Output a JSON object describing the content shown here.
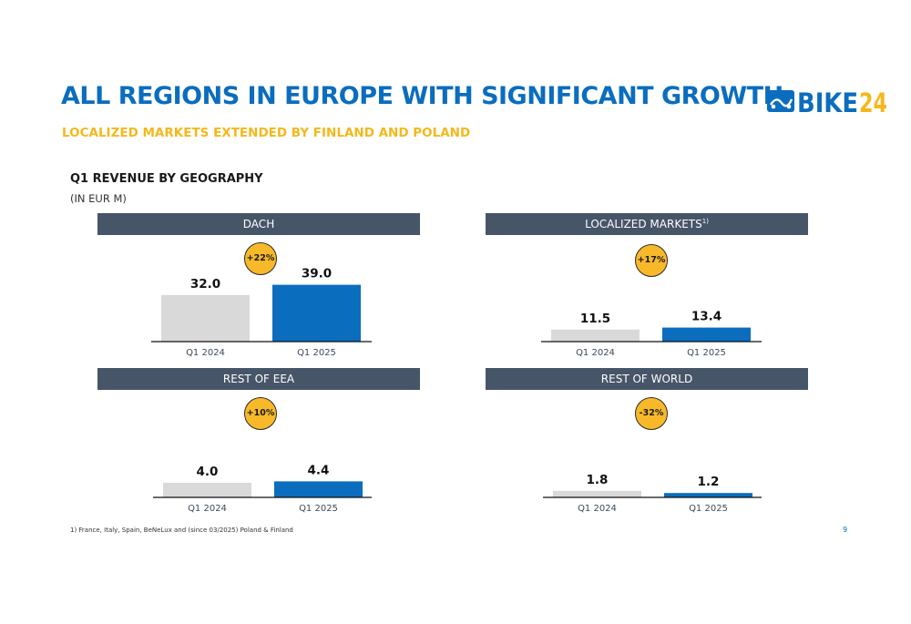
{
  "header": {
    "title": "ALL REGIONS IN EUROPE WITH SIGNIFICANT GROWTH",
    "subtitle": "LOCALIZED MARKETS EXTENDED BY FINLAND AND POLAND",
    "logo_text": "BIKE24"
  },
  "section": {
    "title": "Q1 REVENUE BY GEOGRAPHY",
    "unit": "(IN EUR M)"
  },
  "colors": {
    "title_blue": "#0b6dbe",
    "accent_yellow": "#f5b81c",
    "header_bar": "#475569",
    "bar_prior": "#d9d9d9",
    "bar_current": "#0b6dbe",
    "badge": "#f7b92a"
  },
  "chart_data": [
    {
      "type": "bar",
      "title": "DACH",
      "categories": [
        "Q1 2024",
        "Q1 2025"
      ],
      "values": [
        32.0,
        39.0
      ],
      "value_labels": [
        "32.0",
        "39.0"
      ],
      "growth": "+22%"
    },
    {
      "type": "bar",
      "title": "LOCALIZED MARKETS",
      "title_footnote": "1)",
      "categories": [
        "Q1 2024",
        "Q1 2025"
      ],
      "values": [
        11.5,
        13.4
      ],
      "value_labels": [
        "11.5",
        "13.4"
      ],
      "growth": "+17%"
    },
    {
      "type": "bar",
      "title": "REST OF EEA",
      "categories": [
        "Q1 2024",
        "Q1 2025"
      ],
      "values": [
        4.0,
        4.4
      ],
      "value_labels": [
        "4.0",
        "4.4"
      ],
      "growth": "+10%"
    },
    {
      "type": "bar",
      "title": "REST OF WORLD",
      "categories": [
        "Q1 2024",
        "Q1 2025"
      ],
      "values": [
        1.8,
        1.2
      ],
      "value_labels": [
        "1.8",
        "1.2"
      ],
      "growth": "-32%"
    }
  ],
  "footnote": "1) France, Italy, Spain, BeNeLux and (since 03/2025) Poland & Finland",
  "page_number": "9"
}
